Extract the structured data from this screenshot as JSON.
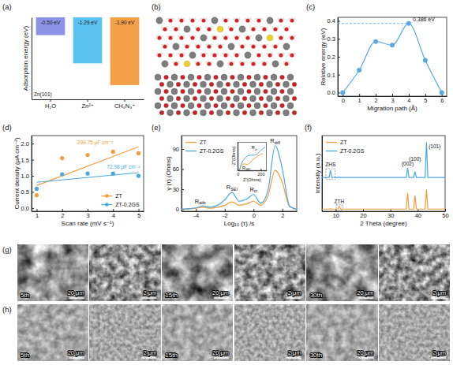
{
  "chart_data": [
    {
      "panel_label": "(a)",
      "type": "bar",
      "ylabel": "Adsorption energy (eV)",
      "categories": [
        "H₂O",
        "Zn²⁺",
        "CH₆N₃⁺"
      ],
      "values": [
        -0.5,
        -1.29,
        -1.9
      ],
      "value_labels": [
        "-0.50 eV",
        "-1.29 eV",
        "-1.90 eV"
      ],
      "colors": [
        "#8c92e6",
        "#5cc3f0",
        "#f3a048"
      ],
      "ylim": [
        -2.3,
        0
      ],
      "yticks": [],
      "tick_labels": "x",
      "data_labels": true,
      "annotations": [
        "Zn(101)"
      ]
    },
    {
      "panel_label": "(b)",
      "type": "image"
    },
    {
      "panel_label": "(c)",
      "type": "line",
      "xlabel": "Migration path (Å)",
      "ylabel": "Relative energy (eV)",
      "x": [
        0,
        1,
        2,
        3,
        4,
        5,
        6
      ],
      "values": [
        0,
        0.125,
        0.285,
        0.265,
        0.386,
        0.18,
        0
      ],
      "color": "#5aa9e6",
      "marker": "circle",
      "xlim": [
        -0.3,
        6.3
      ],
      "xticks": [
        0,
        1,
        2,
        3,
        4,
        5,
        6
      ],
      "ylim": [
        -0.02,
        0.42
      ],
      "yticks": [
        {
          "value": 0,
          "label": "0.0"
        },
        {
          "value": 0.1,
          "label": "0.1"
        },
        {
          "value": 0.2,
          "label": "0.2"
        },
        {
          "value": 0.3,
          "label": "0.3"
        },
        {
          "value": 0.4,
          "label": "0.4"
        }
      ],
      "annotations": [
        "0.386 eV"
      ]
    },
    {
      "panel_label": "(d)",
      "type": "scatter",
      "xlabel": "Scan rate (mV s⁻¹)",
      "ylabel": "Current density (μA cm⁻²)",
      "x": [
        1,
        2,
        3,
        4,
        5
      ],
      "marker": "circle",
      "fit_x": [
        1,
        5
      ],
      "series": [
        {
          "name": "ZT",
          "color": "#f39c3c",
          "values": [
            0.4,
            1.55,
            1.65,
            1.75,
            1.7
          ],
          "fit": [
            0.7,
            1.9
          ],
          "annotation": "299.75 μF cm⁻²"
        },
        {
          "name": "ZT-0.2GS",
          "color": "#4aa8e0",
          "values": [
            0.6,
            1.05,
            1.07,
            1.07,
            1.0
          ],
          "fit": [
            0.8,
            1.1
          ],
          "annotation": "72.98 μF cm⁻²"
        }
      ],
      "xlim": [
        0.8,
        5.2
      ],
      "xticks": [
        1,
        2,
        3,
        4,
        5
      ],
      "ylim": [
        -0.1,
        2.25
      ],
      "yticks": [
        {
          "value": 0,
          "label": "0.0"
        },
        {
          "value": 0.5,
          "label": "0.5"
        },
        {
          "value": 1,
          "label": "1.0"
        },
        {
          "value": 1.5,
          "label": "1.5"
        },
        {
          "value": 2,
          "label": "2.0"
        }
      ],
      "legend": "lower right"
    },
    {
      "panel_label": "(e)",
      "type": "line",
      "xlabel": "Log₁₀ (τ) /s",
      "ylabel": "γ (τ) (Ohms)",
      "x": [
        -5,
        -4.5,
        -4,
        -3.5,
        -3,
        -2.5,
        -2,
        -1.5,
        -1,
        -0.5,
        0,
        0.5,
        1,
        1.5,
        2,
        2.5,
        3
      ],
      "series": [
        {
          "name": "ZT",
          "color": "#f39c3c",
          "values": [
            0,
            0.5,
            1.5,
            3,
            1.5,
            3,
            6,
            11,
            6,
            8,
            12,
            6,
            20,
            58,
            40,
            4,
            0
          ]
        },
        {
          "name": "ZT-0.2GS",
          "color": "#4aa8e0",
          "values": [
            0,
            1,
            2,
            5,
            3,
            6,
            14,
            25,
            12,
            15,
            22,
            9,
            28,
            95,
            60,
            5,
            0
          ]
        }
      ],
      "xlim": [
        -5,
        3
      ],
      "xticks": [
        -4,
        -2,
        0,
        2
      ],
      "ylim": [
        -3,
        110
      ],
      "yticks": [
        0,
        30,
        60,
        90
      ],
      "legend": "upper left",
      "annotations": [
        "Rads",
        "RSEI",
        "Rct",
        "Rdiff"
      ],
      "inset": {
        "type": "line",
        "xlabel": "Z'(Ohms)",
        "ylabel": "-Z''(Ohms)",
        "series": [
          {
            "color": "#f39c3c",
            "x": [
              15,
              25,
              40,
              60,
              80,
              100,
              130,
              170,
              220
            ],
            "values": [
              0,
              15,
              25,
              28,
              25,
              30,
              45,
              60,
              72
            ]
          },
          {
            "color": "#4aa8e0",
            "x": [
              15,
              30,
              50,
              80,
              110,
              140,
              170,
              200,
              240
            ],
            "values": [
              0,
              25,
              45,
              60,
              65,
              65,
              70,
              85,
              100
            ]
          }
        ],
        "xlim": [
          0,
          250
        ],
        "xticks": [
          0,
          200
        ],
        "ylim": [
          0,
          120
        ],
        "yticks": [],
        "tick_labels": "x",
        "annotations": [
          "RSEI",
          "Rct"
        ]
      }
    },
    {
      "panel_label": "(f)",
      "type": "line",
      "xlabel": "2 Theta (degree)",
      "ylabel": "Intensity (a.u.)",
      "x": [
        5,
        7.6,
        8.1,
        8.6,
        10.8,
        11.3,
        11.8,
        35.8,
        36.3,
        36.8,
        38.5,
        39,
        39.5,
        42.7,
        43.2,
        43.7,
        50
      ],
      "series": [
        {
          "name": "ZT",
          "color": "#f39c3c",
          "values": [
            3,
            3,
            3.5,
            3,
            3,
            7,
            3,
            3,
            25,
            3,
            3,
            22,
            3,
            3,
            30,
            3,
            3
          ]
        },
        {
          "name": "ZT-0.2GS",
          "color": "#4aa8e0",
          "values": [
            47,
            47,
            57,
            47,
            47,
            47.5,
            47,
            47,
            60,
            47,
            47,
            55,
            47,
            47,
            96,
            47,
            47
          ]
        }
      ],
      "xlim": [
        5,
        50
      ],
      "xticks": [
        10,
        20,
        30,
        40,
        50
      ],
      "ylim": [
        0,
        105
      ],
      "yticks": [],
      "tick_labels": "x",
      "legend": "upper left",
      "annotations": [
        "ZHS",
        "ZTH",
        "(002)",
        "(100)",
        "(101)"
      ]
    },
    {
      "panel_label": "(g)",
      "type": "micrograph",
      "tiles": [
        {
          "label": "5th",
          "scale_bar": "20 μm"
        },
        {
          "scale_bar": "2 μm"
        },
        {
          "label": "15th",
          "scale_bar": "20 μm"
        },
        {
          "scale_bar": "2 μm"
        },
        {
          "label": "30th",
          "scale_bar": "20 μm"
        },
        {
          "scale_bar": "2 μm"
        }
      ]
    },
    {
      "panel_label": "(h)",
      "type": "micrograph",
      "tiles": [
        {
          "label": "5th",
          "scale_bar": "20 μm"
        },
        {
          "scale_bar": "2 μm"
        },
        {
          "label": "15th",
          "scale_bar": "20 μm"
        },
        {
          "scale_bar": "2 μm"
        },
        {
          "label": "30th",
          "scale_bar": "20 μm"
        },
        {
          "scale_bar": "2 μm"
        }
      ]
    }
  ]
}
